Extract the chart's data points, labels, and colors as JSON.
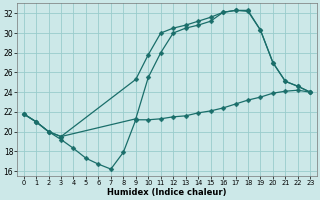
{
  "xlabel": "Humidex (Indice chaleur)",
  "bg_color": "#cce8e8",
  "grid_color": "#99cccc",
  "line_color": "#1a6e6a",
  "xlim": [
    -0.5,
    23.5
  ],
  "ylim": [
    15.5,
    33
  ],
  "xticks": [
    0,
    1,
    2,
    3,
    4,
    5,
    6,
    7,
    8,
    9,
    10,
    11,
    12,
    13,
    14,
    15,
    16,
    17,
    18,
    19,
    20,
    21,
    22,
    23
  ],
  "yticks": [
    16,
    18,
    20,
    22,
    24,
    26,
    28,
    30,
    32
  ],
  "line1_x": [
    0,
    1,
    2,
    3,
    4,
    5,
    6,
    7,
    8,
    9,
    10,
    11,
    12,
    13,
    14,
    15,
    16,
    17,
    18,
    19,
    20,
    21,
    22,
    23
  ],
  "line1_y": [
    21.8,
    21.0,
    20.0,
    19.2,
    18.3,
    17.3,
    16.7,
    16.2,
    17.9,
    21.2,
    21.2,
    21.3,
    21.5,
    21.6,
    21.9,
    22.1,
    22.4,
    22.8,
    23.2,
    23.5,
    23.9,
    24.1,
    24.2,
    24.0
  ],
  "line2_x": [
    0,
    1,
    2,
    3,
    9,
    10,
    11,
    12,
    13,
    14,
    15,
    16,
    17,
    18,
    19,
    20,
    21,
    22,
    23
  ],
  "line2_y": [
    21.8,
    21.0,
    20.0,
    19.5,
    25.3,
    27.8,
    30.0,
    30.5,
    30.8,
    31.2,
    31.6,
    32.1,
    32.3,
    32.2,
    30.3,
    27.0,
    25.1,
    24.6,
    24.0
  ],
  "line3_x": [
    0,
    1,
    2,
    3,
    9,
    10,
    11,
    12,
    13,
    14,
    15,
    16,
    17,
    18,
    19,
    20,
    21,
    22,
    23
  ],
  "line3_y": [
    21.8,
    21.0,
    20.0,
    19.5,
    21.3,
    25.5,
    28.0,
    30.0,
    30.5,
    30.8,
    31.2,
    32.1,
    32.3,
    32.3,
    30.3,
    27.0,
    25.1,
    24.6,
    24.0
  ]
}
